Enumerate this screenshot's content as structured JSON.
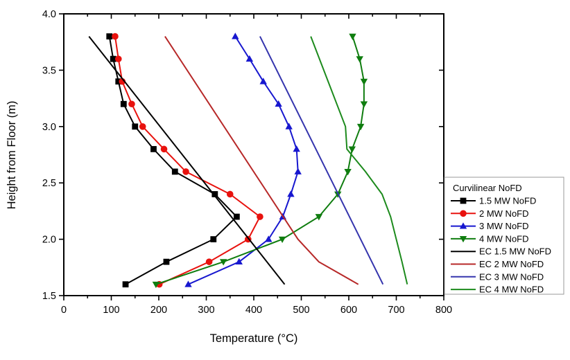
{
  "figure": {
    "background": "#ffffff"
  },
  "chart_data": {
    "type": "line",
    "title": "",
    "xlabel": "Temperature (°C)",
    "ylabel": "Height from Floor (m)",
    "xlim": [
      0,
      800
    ],
    "ylim": [
      1.5,
      4.0
    ],
    "x_major_tick_step": 100,
    "x_minor_tick_step": 50,
    "y_major_tick_step": 0.5,
    "grid": false,
    "axis_color": "#000000",
    "legend": {
      "title": "Curvilinear NoFD",
      "position": "outside-right",
      "border_color": "#9a9a9a",
      "background": "#ffffff"
    },
    "points_format": "[temperature_C, height_m]",
    "series": [
      {
        "name": "1.5 MW NoFD",
        "color": "#000000",
        "marker": "square",
        "points": [
          [
            130,
            1.6
          ],
          [
            216,
            1.8
          ],
          [
            315,
            2.0
          ],
          [
            364,
            2.2
          ],
          [
            318,
            2.4
          ],
          [
            234,
            2.6
          ],
          [
            189,
            2.8
          ],
          [
            150,
            3.0
          ],
          [
            126,
            3.2
          ],
          [
            115,
            3.4
          ],
          [
            104,
            3.6
          ],
          [
            96,
            3.8
          ]
        ]
      },
      {
        "name": "2 MW NoFD",
        "color": "#e8120e",
        "marker": "circle",
        "points": [
          [
            201,
            1.6
          ],
          [
            306,
            1.8
          ],
          [
            388,
            2.0
          ],
          [
            413,
            2.2
          ],
          [
            350,
            2.4
          ],
          [
            257,
            2.6
          ],
          [
            211,
            2.8
          ],
          [
            166,
            3.0
          ],
          [
            143,
            3.2
          ],
          [
            123,
            3.4
          ],
          [
            115,
            3.6
          ],
          [
            108,
            3.8
          ]
        ]
      },
      {
        "name": "3 MW NoFD",
        "color": "#1717cf",
        "marker": "triangle-up",
        "points": [
          [
            262,
            1.6
          ],
          [
            369,
            1.8
          ],
          [
            431,
            2.0
          ],
          [
            461,
            2.2
          ],
          [
            478,
            2.4
          ],
          [
            493,
            2.6
          ],
          [
            490,
            2.8
          ],
          [
            474,
            3.0
          ],
          [
            452,
            3.2
          ],
          [
            420,
            3.4
          ],
          [
            391,
            3.6
          ],
          [
            361,
            3.8
          ]
        ]
      },
      {
        "name": "4 MW NoFD",
        "color": "#0f7d0f",
        "marker": "triangle-down",
        "points": [
          [
            194,
            1.6
          ],
          [
            336,
            1.8
          ],
          [
            460,
            2.0
          ],
          [
            537,
            2.2
          ],
          [
            577,
            2.4
          ],
          [
            598,
            2.6
          ],
          [
            607,
            2.8
          ],
          [
            625,
            3.0
          ],
          [
            632,
            3.2
          ],
          [
            632,
            3.4
          ],
          [
            623,
            3.6
          ],
          [
            608,
            3.8
          ]
        ]
      },
      {
        "name": "EC 1.5 MW NoFD",
        "color": "#000000",
        "marker": "none",
        "points": [
          [
            465,
            1.6
          ],
          [
            53,
            3.8
          ]
        ]
      },
      {
        "name": "EC 2 MW NoFD",
        "color": "#b72828",
        "marker": "none",
        "points": [
          [
            620,
            1.6
          ],
          [
            537,
            1.8
          ],
          [
            493,
            2.0
          ],
          [
            213,
            3.8
          ]
        ]
      },
      {
        "name": "EC 3 MW NoFD",
        "color": "#3434ad",
        "marker": "none",
        "points": [
          [
            672,
            1.6
          ],
          [
            413,
            3.8
          ]
        ]
      },
      {
        "name": "EC 4 MW NoFD",
        "color": "#1c8a1c",
        "marker": "none",
        "points": [
          [
            723,
            1.6
          ],
          [
            712,
            1.8
          ],
          [
            700,
            2.0
          ],
          [
            688,
            2.2
          ],
          [
            670,
            2.4
          ],
          [
            635,
            2.6
          ],
          [
            596,
            2.8
          ],
          [
            593,
            3.0
          ],
          [
            520,
            3.8
          ]
        ]
      }
    ]
  }
}
